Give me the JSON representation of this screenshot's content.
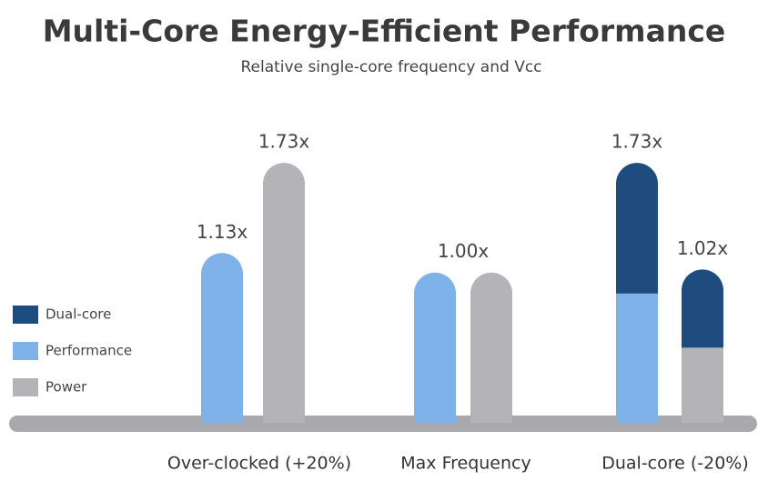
{
  "chart_data": {
    "type": "bar",
    "title": "Multi-Core Energy-Efficient Performance",
    "subtitle": "Relative single-core frequency and Vcc",
    "categories": [
      "Over-clocked (+20%)",
      "Max Frequency",
      "Dual-core (-20%)"
    ],
    "series": [
      {
        "name": "Dual-core",
        "color": "#1f4c7e",
        "values": [
          null,
          null,
          0.87
        ],
        "power_values": [
          null,
          null,
          0.52
        ]
      },
      {
        "name": "Performance",
        "color": "#80b2ea",
        "values": [
          1.13,
          1.0,
          0.86
        ]
      },
      {
        "name": "Power",
        "color": "#b3b3b8",
        "values": [
          1.73,
          1.0,
          0.5
        ]
      }
    ],
    "top_labels": [
      {
        "label": "1.13x",
        "value": 1.13
      },
      {
        "label": "1.73x",
        "value": 1.73
      },
      {
        "label": "1.00x",
        "value": 1.0
      },
      {
        "label": "1.73x",
        "value": 1.73
      },
      {
        "label": "1.02x",
        "value": 1.02
      }
    ],
    "ylim": [
      0,
      1.9
    ]
  }
}
